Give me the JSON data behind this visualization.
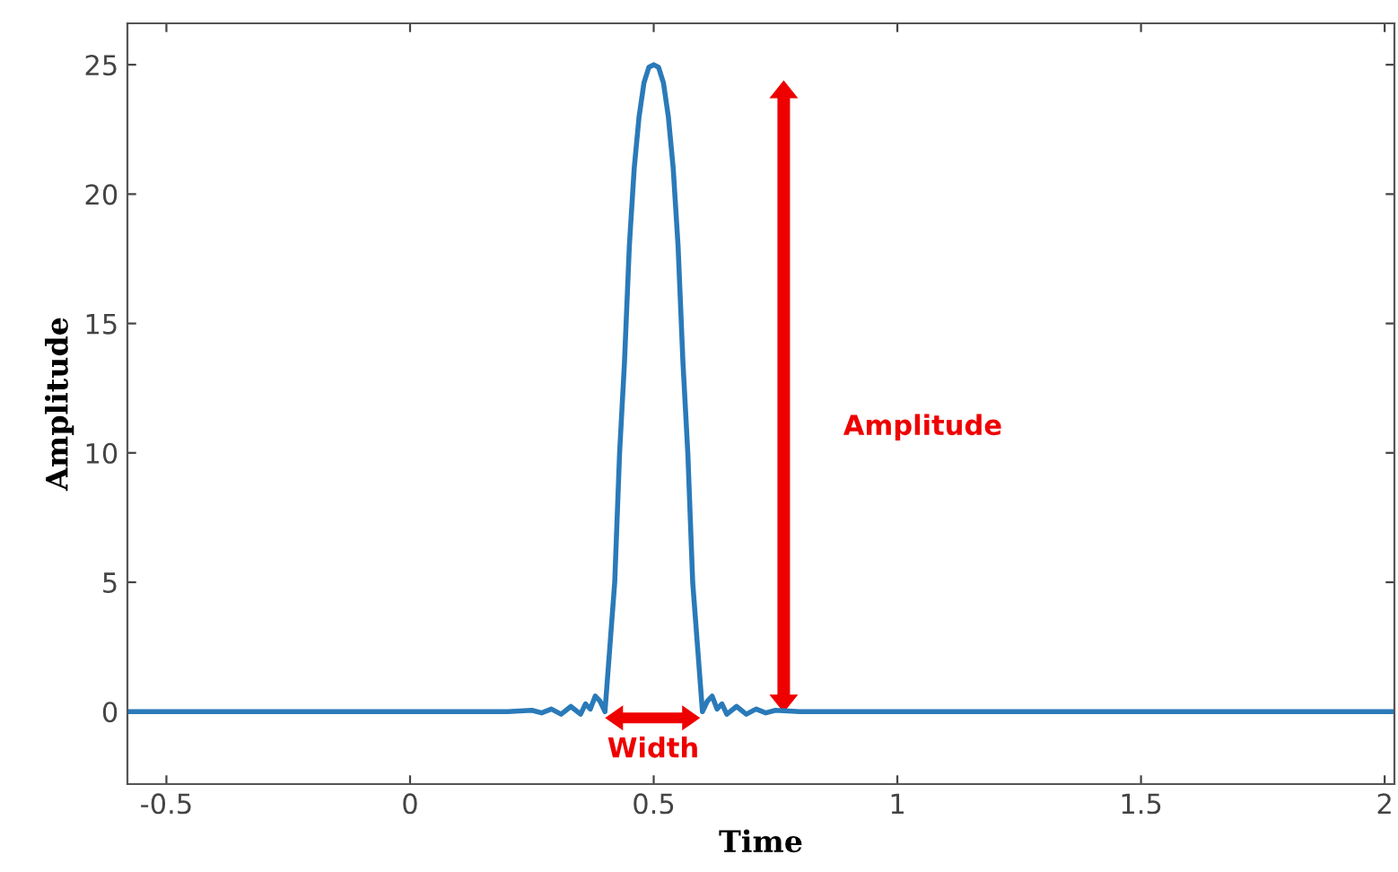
{
  "chart_data": {
    "type": "line",
    "xlabel": "Time",
    "ylabel": "Amplitude",
    "x": [
      -0.58,
      0.0,
      0.2,
      0.25,
      0.27,
      0.29,
      0.31,
      0.33,
      0.35,
      0.36,
      0.37,
      0.38,
      0.39,
      0.4,
      0.41,
      0.42,
      0.43,
      0.44,
      0.45,
      0.46,
      0.47,
      0.48,
      0.49,
      0.5,
      0.51,
      0.52,
      0.53,
      0.54,
      0.55,
      0.56,
      0.57,
      0.58,
      0.59,
      0.6,
      0.61,
      0.62,
      0.63,
      0.64,
      0.65,
      0.67,
      0.69,
      0.71,
      0.73,
      0.75,
      0.8,
      1.0,
      2.02
    ],
    "series": [
      {
        "color": "#2a7ab9",
        "values": [
          0,
          0,
          0,
          0.05,
          -0.05,
          0.1,
          -0.1,
          0.2,
          -0.1,
          0.3,
          0.1,
          0.6,
          0.4,
          0,
          2.5,
          5,
          10,
          13.5,
          18,
          21,
          23,
          24.3,
          24.9,
          25,
          24.9,
          24.3,
          23,
          21,
          18,
          13.5,
          10,
          5,
          2.5,
          0,
          0.4,
          0.6,
          0.1,
          0.3,
          -0.1,
          0.2,
          -0.1,
          0.1,
          -0.05,
          0.05,
          0,
          0,
          0
        ]
      }
    ],
    "xlim": [
      -0.58,
      2.02
    ],
    "ylim": [
      -2.8,
      26.6
    ],
    "xticks": [
      -0.5,
      0,
      0.5,
      1,
      1.5,
      2
    ],
    "yticks": [
      0,
      5,
      10,
      15,
      20,
      25
    ],
    "annotations": [
      "Amplitude",
      "Width"
    ]
  }
}
